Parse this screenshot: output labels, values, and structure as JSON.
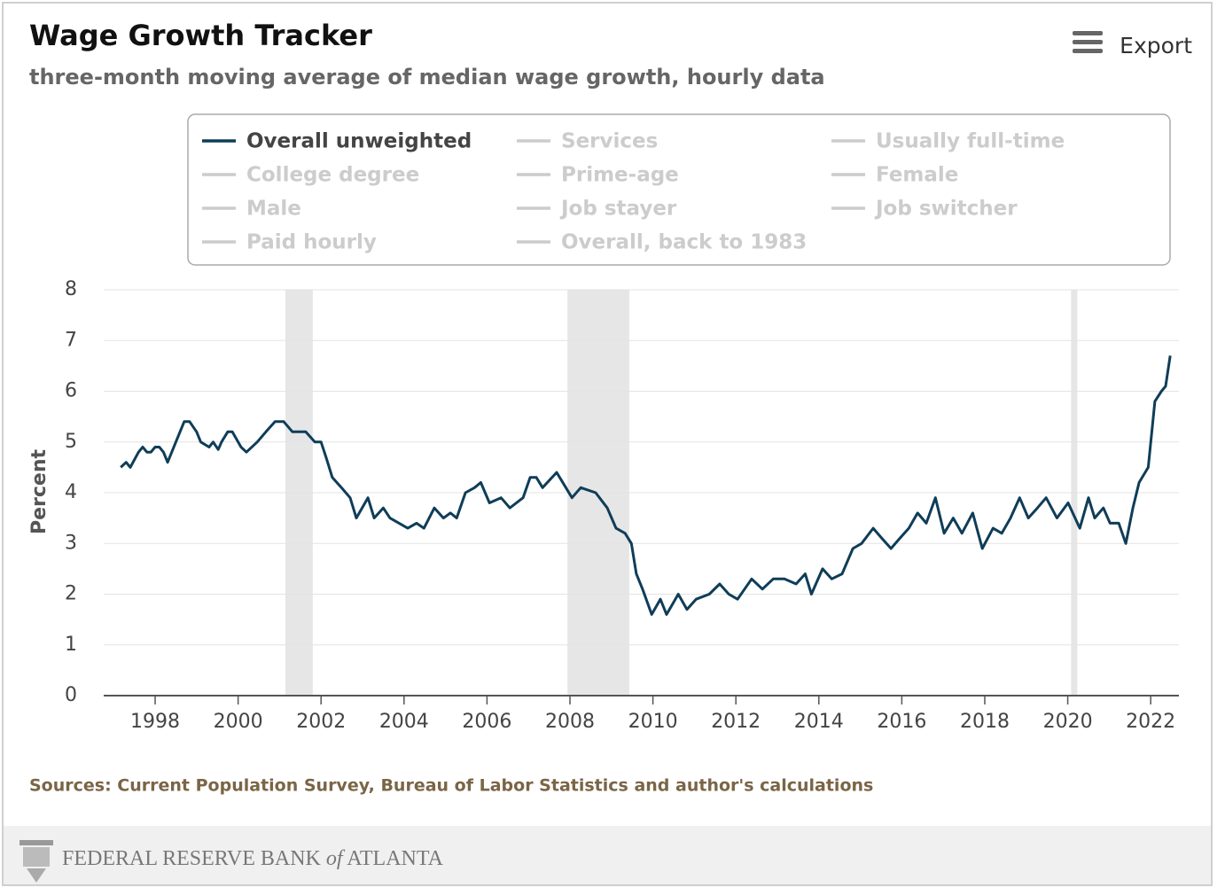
{
  "chart_data": {
    "type": "line",
    "title": "Wage Growth Tracker",
    "subtitle": "three-month moving average of median wage growth, hourly data",
    "export_label": "Export",
    "ylabel": "Percent",
    "source": "Sources: Current Population Survey, Bureau of Labor Statistics and author's calculations",
    "xlim": [
      1996.76,
      2022.68
    ],
    "xticks": [
      1998,
      2000,
      2002,
      2004,
      2006,
      2008,
      2010,
      2012,
      2014,
      2016,
      2018,
      2020,
      2022
    ],
    "ylim": [
      0,
      8
    ],
    "yticks": [
      0,
      1,
      2,
      3,
      4,
      5,
      6,
      7,
      8
    ],
    "grid": true,
    "shaded_periods": [
      [
        2001.14,
        2001.8
      ],
      [
        2007.94,
        2009.43
      ],
      [
        2020.08,
        2020.23
      ]
    ],
    "series": [
      {
        "name": "Overall unweighted",
        "color": "#0f3d58",
        "x": [
          1997.17,
          1997.3,
          1997.4,
          1997.6,
          1997.7,
          1997.8,
          1997.9,
          1998.0,
          1998.1,
          1998.2,
          1998.3,
          1998.5,
          1998.7,
          1998.83,
          1999.0,
          1999.1,
          1999.3,
          1999.4,
          1999.52,
          1999.6,
          1999.75,
          1999.86,
          2000.07,
          2000.2,
          2000.46,
          2000.67,
          2000.89,
          2001.1,
          2001.31,
          2001.45,
          2001.63,
          2001.85,
          2002.0,
          2002.12,
          2002.27,
          2002.49,
          2002.7,
          2002.85,
          2003.13,
          2003.28,
          2003.5,
          2003.66,
          2003.88,
          2004.09,
          2004.3,
          2004.48,
          2004.73,
          2004.95,
          2005.12,
          2005.27,
          2005.48,
          2005.7,
          2005.85,
          2006.06,
          2006.34,
          2006.55,
          2006.87,
          2007.04,
          2007.19,
          2007.34,
          2007.68,
          2008.05,
          2008.26,
          2008.62,
          2008.9,
          2009.11,
          2009.33,
          2009.48,
          2009.6,
          2009.75,
          2009.97,
          2010.18,
          2010.33,
          2010.61,
          2010.82,
          2011.04,
          2011.36,
          2011.61,
          2011.83,
          2012.04,
          2012.38,
          2012.64,
          2012.9,
          2013.17,
          2013.45,
          2013.67,
          2013.82,
          2014.09,
          2014.31,
          2014.56,
          2014.82,
          2015.03,
          2015.31,
          2015.52,
          2015.74,
          2015.95,
          2016.17,
          2016.38,
          2016.59,
          2016.81,
          2017.02,
          2017.24,
          2017.45,
          2017.71,
          2017.94,
          2018.2,
          2018.41,
          2018.62,
          2018.84,
          2019.05,
          2019.27,
          2019.48,
          2019.74,
          2020.01,
          2020.29,
          2020.5,
          2020.65,
          2020.86,
          2021.02,
          2021.23,
          2021.4,
          2021.57,
          2021.72,
          2021.94,
          2022.1,
          2022.26,
          2022.36,
          2022.47
        ],
        "values": [
          4.5,
          4.6,
          4.5,
          4.8,
          4.9,
          4.8,
          4.8,
          4.9,
          4.9,
          4.8,
          4.6,
          5.0,
          5.4,
          5.4,
          5.2,
          5.0,
          4.9,
          5.0,
          4.85,
          5.0,
          5.2,
          5.2,
          4.9,
          4.8,
          5.0,
          5.2,
          5.4,
          5.4,
          5.2,
          5.2,
          5.2,
          5.0,
          5.0,
          4.7,
          4.3,
          4.1,
          3.9,
          3.5,
          3.9,
          3.5,
          3.7,
          3.5,
          3.4,
          3.3,
          3.4,
          3.3,
          3.7,
          3.5,
          3.6,
          3.5,
          4.0,
          4.1,
          4.2,
          3.8,
          3.9,
          3.7,
          3.9,
          4.3,
          4.3,
          4.1,
          4.4,
          3.9,
          4.1,
          4.0,
          3.7,
          3.3,
          3.2,
          3.0,
          2.4,
          2.1,
          1.6,
          1.9,
          1.6,
          2.0,
          1.7,
          1.9,
          2.0,
          2.2,
          2.0,
          1.9,
          2.3,
          2.1,
          2.3,
          2.3,
          2.2,
          2.4,
          2.0,
          2.5,
          2.3,
          2.4,
          2.9,
          3.0,
          3.3,
          3.1,
          2.9,
          3.1,
          3.3,
          3.6,
          3.4,
          3.9,
          3.2,
          3.5,
          3.2,
          3.6,
          2.9,
          3.3,
          3.2,
          3.5,
          3.9,
          3.5,
          3.7,
          3.9,
          3.5,
          3.8,
          3.3,
          3.9,
          3.5,
          3.7,
          3.4,
          3.4,
          3.0,
          3.7,
          4.2,
          4.5,
          5.8,
          6.0,
          6.1,
          6.7
        ]
      }
    ],
    "hidden_series": [
      "Services",
      "Usually full-time",
      "College degree",
      "Prime-age",
      "Female",
      "Male",
      "Job stayer",
      "Job switcher",
      "Paid hourly",
      "Overall, back to 1983"
    ],
    "hidden_color": "#cccccc"
  },
  "footer": {
    "brand": [
      "FEDERAL RESERVE BANK ",
      "of",
      " ATLANTA"
    ]
  }
}
